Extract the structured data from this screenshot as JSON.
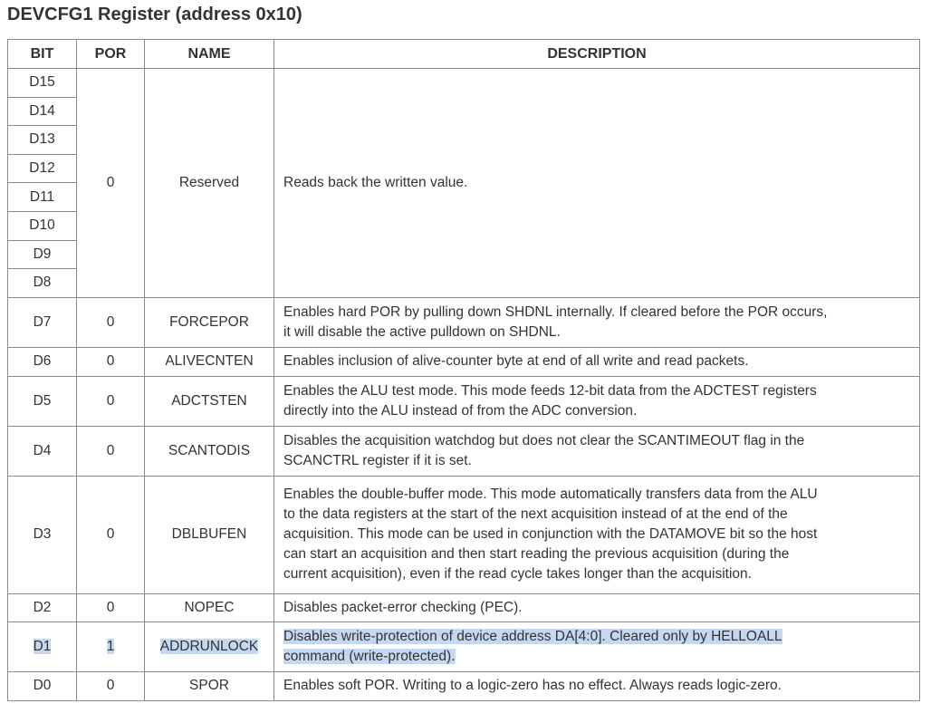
{
  "title": "DEVCFG1 Register (address 0x10)",
  "headers": [
    "BIT",
    "POR",
    "NAME",
    "DESCRIPTION"
  ],
  "reserved": {
    "bits": [
      "D15",
      "D14",
      "D13",
      "D12",
      "D11",
      "D10",
      "D9",
      "D8"
    ],
    "por": "0",
    "name": "Reserved",
    "desc": [
      "Reads back the written value."
    ]
  },
  "rows": [
    {
      "bit": "D7",
      "por": "0",
      "name": "FORCEPOR",
      "desc": [
        "Enables hard POR by pulling down SHDNL internally. If cleared before the POR occurs,",
        "it will disable the active pulldown on SHDNL."
      ]
    },
    {
      "bit": "D6",
      "por": "0",
      "name": "ALIVECNTEN",
      "desc": [
        "Enables inclusion of alive-counter byte at end of all write and read packets."
      ]
    },
    {
      "bit": "D5",
      "por": "0",
      "name": "ADCTSTEN",
      "desc": [
        "Enables the ALU test mode. This mode feeds 12-bit data from the ADCTEST registers",
        "directly into the ALU instead of from the ADC conversion."
      ]
    },
    {
      "bit": "D4",
      "por": "0",
      "name": "SCANTODIS",
      "desc": [
        "Disables the acquisition watchdog but does not clear the SCANTIMEOUT flag in the",
        "SCANCTRL register if it is set."
      ]
    },
    {
      "bit": "D3",
      "por": "0",
      "name": "DBLBUFEN",
      "desc": [
        "Enables the double-buffer mode. This mode automatically transfers data from the ALU",
        "to the data registers at the start of the next acquisition instead of at the end of the",
        "acquisition. This mode can be used in conjunction with the DATAMOVE bit so the host",
        "can start an acquisition and then start reading the previous acquisition (during the",
        "current acquisition), even if the read cycle takes longer than the acquisition."
      ]
    },
    {
      "bit": "D2",
      "por": "0",
      "name": "NOPEC",
      "desc": [
        "Disables packet-error checking (PEC)."
      ]
    },
    {
      "bit": "D1",
      "por": "1",
      "name": "ADDRUNLOCK",
      "desc": [
        "Disables write-protection of device address DA[4:0]. Cleared only by HELLOALL",
        "command (write-protected)."
      ],
      "selected": true
    },
    {
      "bit": "D0",
      "por": "0",
      "name": "SPOR",
      "desc": [
        "Enables soft POR. Writing to a logic-zero has no effect. Always reads logic-zero."
      ]
    }
  ],
  "selection_color": "#c5d8f2"
}
